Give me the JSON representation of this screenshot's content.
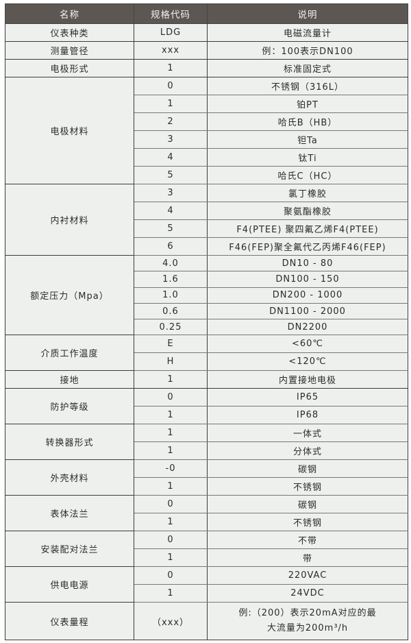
{
  "header": {
    "name": "名称",
    "code": "规格代码",
    "desc": "说明"
  },
  "groups": [
    {
      "name": "仪表种类",
      "rows": [
        {
          "code": "LDG",
          "desc": "电磁流量计"
        }
      ]
    },
    {
      "name": "测量管径",
      "rows": [
        {
          "code": "xxx",
          "desc": "例：100表示DN100"
        }
      ]
    },
    {
      "name": "电极形式",
      "rows": [
        {
          "code": "1",
          "desc": "标准固定式"
        }
      ]
    },
    {
      "name": "电极材料",
      "rows": [
        {
          "code": "0",
          "desc": "不锈钢（316L）"
        },
        {
          "code": "1",
          "desc": "铂PT"
        },
        {
          "code": "2",
          "desc": "哈氏B（HB）"
        },
        {
          "code": "3",
          "desc": "钽Ta"
        },
        {
          "code": "4",
          "desc": "钛Ti"
        },
        {
          "code": "5",
          "desc": "哈氏C（HC）"
        }
      ]
    },
    {
      "name": "内衬材料",
      "rows": [
        {
          "code": "3",
          "desc": "氯丁橡胶"
        },
        {
          "code": "4",
          "desc": "聚氨酯橡胶"
        },
        {
          "code": "5",
          "desc": "F4(PTEE) 聚四氟乙烯F4(PTEE)"
        },
        {
          "code": "6",
          "desc": "F46(FEP)聚全氟代乙丙烯F46(FEP)"
        }
      ]
    },
    {
      "name": "额定压力（Mpa）",
      "rows": [
        {
          "code": "4.0",
          "desc": "DN10 - 80"
        },
        {
          "code": "1.6",
          "desc": "DN100 - 150"
        },
        {
          "code": "1.0",
          "desc": "DN200 - 1000"
        },
        {
          "code": "0.6",
          "desc": "DN1100 - 2000"
        },
        {
          "code": "0.25",
          "desc": "DN2200"
        }
      ]
    },
    {
      "name": "介质工作温度",
      "rows": [
        {
          "code": "E",
          "desc": "<60℃"
        },
        {
          "code": "H",
          "desc": "<120℃"
        }
      ]
    },
    {
      "name": "接地",
      "rows": [
        {
          "code": "1",
          "desc": "内置接地电极"
        }
      ]
    },
    {
      "name": "防护等级",
      "rows": [
        {
          "code": "0",
          "desc": "IP65"
        },
        {
          "code": "1",
          "desc": "IP68"
        }
      ]
    },
    {
      "name": "转换器形式",
      "rows": [
        {
          "code": "1",
          "desc": "一体式"
        },
        {
          "code": "1",
          "desc": "分体式"
        }
      ]
    },
    {
      "name": "外壳材料",
      "rows": [
        {
          "code": "-0",
          "desc": "碳钢"
        },
        {
          "code": "1",
          "desc": "不锈钢"
        }
      ]
    },
    {
      "name": "表体法兰",
      "rows": [
        {
          "code": "0",
          "desc": "碳钢"
        },
        {
          "code": "1",
          "desc": "不锈钢"
        }
      ]
    },
    {
      "name": "安装配对法兰",
      "rows": [
        {
          "code": "0",
          "desc": "不带"
        },
        {
          "code": "1",
          "desc": "带"
        }
      ]
    },
    {
      "name": "供电电源",
      "rows": [
        {
          "code": "0",
          "desc": "220VAC"
        },
        {
          "code": "1",
          "desc": "24VDC"
        }
      ]
    },
    {
      "name": "仪表量程",
      "rows": [
        {
          "code": "（xxx）",
          "desc": "例:（200）表示20mA对应的最大流量为200m³/h"
        }
      ]
    }
  ]
}
